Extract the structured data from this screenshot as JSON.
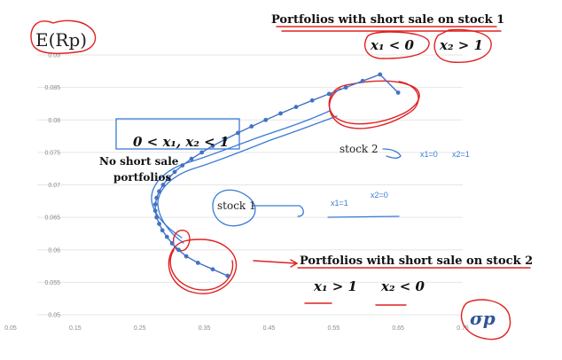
{
  "chart_data": {
    "type": "scatter",
    "title": "",
    "xlabel": "σp",
    "ylabel": "E(Rp)",
    "xlim": [
      0.05,
      0.75
    ],
    "ylim": [
      0.05,
      0.09
    ],
    "x_ticks": [
      "0.05",
      "0.15",
      "0.25",
      "0.35",
      "0.45",
      "0.55",
      "0.65",
      "0.75"
    ],
    "y_ticks": [
      "0.05",
      "0.055",
      "0.06",
      "0.065",
      "0.07",
      "0.075",
      "0.08",
      "0.085",
      "0.09"
    ],
    "grid": true,
    "series": [
      {
        "name": "Portfolio frontier",
        "x": [
          0.386,
          0.363,
          0.34,
          0.322,
          0.31,
          0.3,
          0.292,
          0.285,
          0.28,
          0.276,
          0.274,
          0.274,
          0.276,
          0.28,
          0.286,
          0.294,
          0.304,
          0.316,
          0.33,
          0.346,
          0.363,
          0.382,
          0.402,
          0.423,
          0.445,
          0.468,
          0.492,
          0.517,
          0.543,
          0.569,
          0.595,
          0.622,
          0.65
        ],
        "y": [
          0.056,
          0.057,
          0.058,
          0.059,
          0.06,
          0.061,
          0.062,
          0.063,
          0.064,
          0.065,
          0.066,
          0.067,
          0.068,
          0.069,
          0.07,
          0.071,
          0.072,
          0.073,
          0.074,
          0.075,
          0.076,
          0.077,
          0.078,
          0.079,
          0.08,
          0.081,
          0.082,
          0.083,
          0.084,
          0.085,
          0.086,
          0.087,
          0.084
        ]
      }
    ],
    "annotations": {
      "short_on_stock1": "Portfolios with short sale on stock 1",
      "short_on_stock1_cond_a": "x₁ < 0",
      "short_on_stock1_cond_b": "x₂ > 1",
      "no_short_cond": "0 < x₁, x₂ < 1",
      "no_short_label_1": "No short sale",
      "no_short_label_2": "portfolios",
      "stock2": "stock 2",
      "stock2_x1": "x1=0",
      "stock2_x2": "x2=1",
      "stock1": "stock 1",
      "stock1_x1": "x1=1",
      "stock1_x2": "x2=0",
      "short_on_stock2": "Portfolios with short sale on stock 2",
      "short_on_stock2_cond_a": "x₁ > 1",
      "short_on_stock2_cond_b": "x₂ < 0"
    }
  },
  "colors": {
    "series": "#4472c4",
    "annotation_red": "#e02020",
    "annotation_blue": "#3a7bd5",
    "grid": "#e6e6e6"
  }
}
